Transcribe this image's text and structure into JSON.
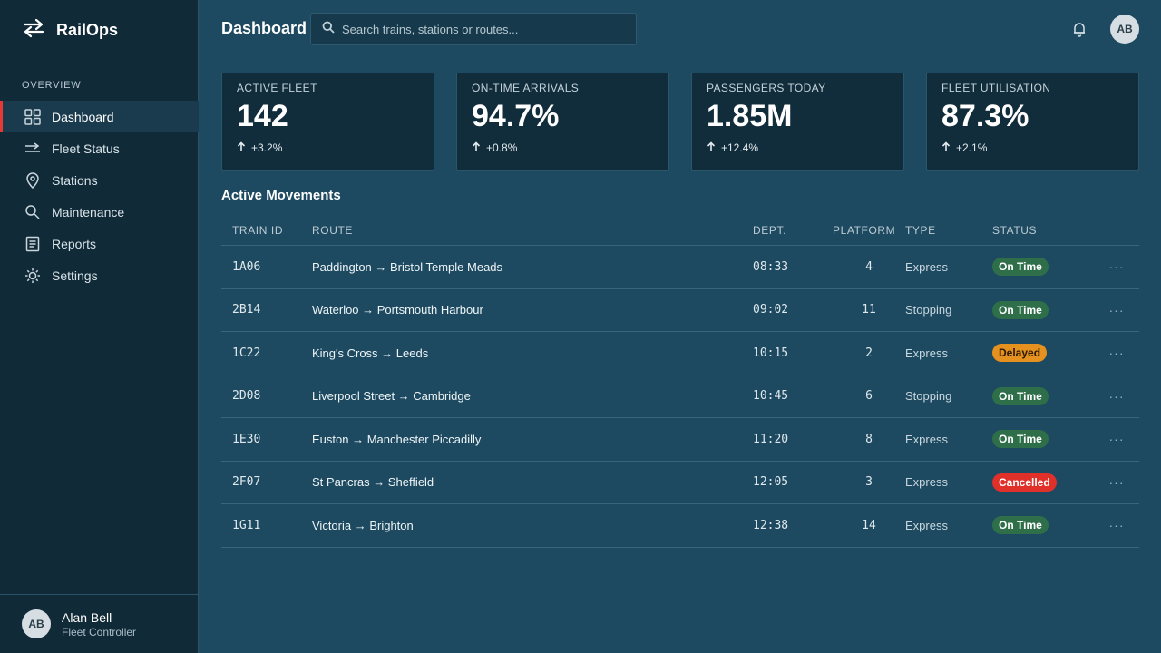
{
  "app": {
    "name": "RailOps"
  },
  "sidebar": {
    "section": "OVERVIEW",
    "items": [
      {
        "label": "Dashboard",
        "icon": "grid-icon",
        "active": true
      },
      {
        "label": "Fleet Status",
        "icon": "fleet-icon"
      },
      {
        "label": "Stations",
        "icon": "pin-icon"
      },
      {
        "label": "Maintenance",
        "icon": "search-icon"
      },
      {
        "label": "Reports",
        "icon": "report-icon"
      },
      {
        "label": "Settings",
        "icon": "gear-icon"
      }
    ],
    "user": {
      "initials": "AB",
      "name": "Alan Bell",
      "role": "Fleet Controller"
    }
  },
  "header": {
    "title": "Dashboard",
    "search_placeholder": "Search trains, stations or routes...",
    "avatar_initials": "AB"
  },
  "kpis": [
    {
      "label": "ACTIVE FLEET",
      "value": "142",
      "delta": "+3.2%"
    },
    {
      "label": "ON-TIME ARRIVALS",
      "value": "94.7%",
      "delta": "+0.8%"
    },
    {
      "label": "PASSENGERS TODAY",
      "value": "1.85M",
      "delta": "+12.4%"
    },
    {
      "label": "FLEET UTILISATION",
      "value": "87.3%",
      "delta": "+2.1%"
    }
  ],
  "movements": {
    "title": "Active Movements",
    "columns": [
      "TRAIN ID",
      "ROUTE",
      "DEPT.",
      "PLATFORM",
      "TYPE",
      "STATUS"
    ],
    "rows": [
      {
        "id": "1A06",
        "route": "Paddington → Bristol Temple Meads",
        "dept": "08:33",
        "platform": "4",
        "type": "Express",
        "status": "On Time"
      },
      {
        "id": "2B14",
        "route": "Waterloo → Portsmouth Harbour",
        "dept": "09:02",
        "platform": "11",
        "type": "Stopping",
        "status": "On Time"
      },
      {
        "id": "1C22",
        "route": "King's Cross → Leeds",
        "dept": "10:15",
        "platform": "2",
        "type": "Express",
        "status": "Delayed"
      },
      {
        "id": "2D08",
        "route": "Liverpool Street → Cambridge",
        "dept": "10:45",
        "platform": "6",
        "type": "Stopping",
        "status": "On Time"
      },
      {
        "id": "1E30",
        "route": "Euston → Manchester Piccadilly",
        "dept": "11:20",
        "platform": "8",
        "type": "Express",
        "status": "On Time"
      },
      {
        "id": "2F07",
        "route": "St Pancras → Sheffield",
        "dept": "12:05",
        "platform": "3",
        "type": "Express",
        "status": "Cancelled"
      },
      {
        "id": "1G11",
        "route": "Victoria → Brighton",
        "dept": "12:38",
        "platform": "14",
        "type": "Express",
        "status": "On Time"
      }
    ],
    "more_label": "···"
  },
  "colors": {
    "accent": "#e53935",
    "on_time": "#2e6f4a",
    "delayed": "#e5911f",
    "cancelled": "#e0302a"
  }
}
